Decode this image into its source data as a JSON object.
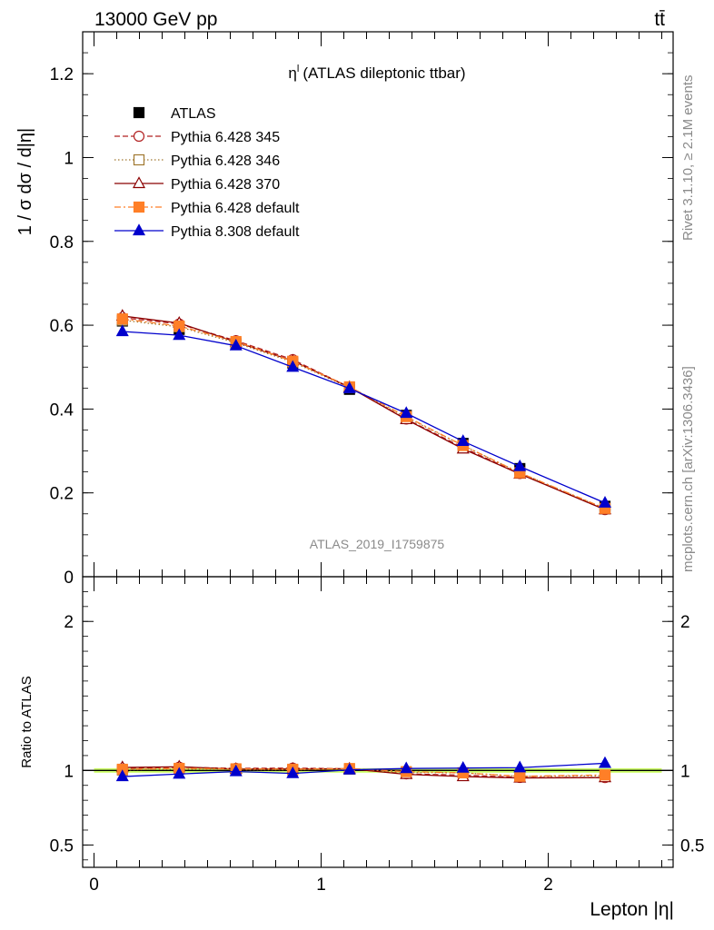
{
  "header": {
    "energy_label": "13000 GeV pp",
    "process_label": "tt̄"
  },
  "side_labels": {
    "rivet": "Rivet 3.1.10, ≥ 2.1M events",
    "mcplots": "mcplots.cern.ch [arXiv:1306.3436]"
  },
  "analysis_id": "ATLAS_2019_I1759875",
  "chart_data": [
    {
      "type": "line",
      "title": "η",
      "title_sup": "l",
      "subtitle": "(ATLAS dileptonic ttbar)",
      "ylabel": "1 / σ  dσ / d|η|",
      "xlabel": "Lepton |η|",
      "xlim": [
        -0.05,
        2.55
      ],
      "ylim": [
        0,
        1.3
      ],
      "y_ticks": [
        0,
        0.2,
        0.4,
        0.6,
        0.8,
        1,
        1.2
      ],
      "y_tick_labels": [
        "0",
        "0.2",
        "0.4",
        "0.6",
        "0.8",
        "1",
        "1.2"
      ],
      "x": [
        0.125,
        0.375,
        0.625,
        0.875,
        1.125,
        1.375,
        1.625,
        1.875,
        2.25
      ],
      "legend_placement": "top-left",
      "series": [
        {
          "name": "ATLAS",
          "color": "#000000",
          "marker": "square-filled",
          "line": "none",
          "values": [
            0.61,
            0.59,
            0.555,
            0.51,
            0.447,
            0.385,
            0.318,
            0.258,
            0.168
          ]
        },
        {
          "name": "Pythia 6.428 345",
          "color": "#b22222",
          "marker": "circle-open",
          "line": "dashed",
          "values": [
            0.618,
            0.603,
            0.563,
            0.518,
            0.452,
            0.376,
            0.308,
            0.246,
            0.16
          ]
        },
        {
          "name": "Pythia 6.428 346",
          "color": "#a07830",
          "marker": "square-open",
          "line": "dotted",
          "values": [
            0.612,
            0.596,
            0.558,
            0.512,
            0.451,
            0.38,
            0.313,
            0.248,
            0.162
          ]
        },
        {
          "name": "Pythia 6.428 370",
          "color": "#8b0000",
          "marker": "triangle-open",
          "line": "solid",
          "values": [
            0.622,
            0.605,
            0.56,
            0.515,
            0.452,
            0.375,
            0.305,
            0.245,
            0.16
          ]
        },
        {
          "name": "Pythia 6.428 default",
          "color": "#ff7f27",
          "marker": "square-filled",
          "line": "dashdot",
          "values": [
            0.615,
            0.598,
            0.561,
            0.514,
            0.453,
            0.382,
            0.313,
            0.248,
            0.163
          ]
        },
        {
          "name": "Pythia 8.308 default",
          "color": "#0000cc",
          "marker": "triangle-filled",
          "line": "solid",
          "values": [
            0.585,
            0.576,
            0.551,
            0.5,
            0.449,
            0.39,
            0.323,
            0.263,
            0.176
          ]
        }
      ]
    },
    {
      "type": "line",
      "ylabel": "Ratio to ATLAS",
      "xlabel": "Lepton |η|",
      "xlim": [
        -0.05,
        2.55
      ],
      "ylim": [
        0.35,
        2.3
      ],
      "y_ticks": [
        0.5,
        1,
        2
      ],
      "y_tick_labels": [
        "0.5",
        "1",
        "2"
      ],
      "x_ticks": [
        0,
        1,
        2
      ],
      "x_tick_labels": [
        "0",
        "1",
        "2"
      ],
      "x": [
        0.125,
        0.375,
        0.625,
        0.875,
        1.125,
        1.375,
        1.625,
        1.875,
        2.25
      ],
      "band": {
        "color": "#ccff66",
        "half_width": 0.015
      },
      "series": [
        {
          "name": "Pythia 6.428 345",
          "color": "#b22222",
          "marker": "circle-open",
          "line": "dashed",
          "values": [
            1.013,
            1.022,
            1.014,
            1.016,
            1.011,
            0.977,
            0.969,
            0.953,
            0.952
          ]
        },
        {
          "name": "Pythia 6.428 346",
          "color": "#a07830",
          "marker": "square-open",
          "line": "dotted",
          "values": [
            1.003,
            1.01,
            1.005,
            1.004,
            1.009,
            0.987,
            0.984,
            0.961,
            0.964
          ]
        },
        {
          "name": "Pythia 6.428 370",
          "color": "#8b0000",
          "marker": "triangle-open",
          "line": "solid",
          "values": [
            1.02,
            1.025,
            1.009,
            1.01,
            1.011,
            0.974,
            0.959,
            0.95,
            0.952
          ]
        },
        {
          "name": "Pythia 6.428 default",
          "color": "#ff7f27",
          "marker": "square-filled",
          "line": "dashdot",
          "values": [
            1.008,
            1.014,
            1.011,
            1.008,
            1.013,
            0.992,
            0.984,
            0.961,
            0.97
          ]
        },
        {
          "name": "Pythia 8.308 default",
          "color": "#0000cc",
          "marker": "triangle-filled",
          "line": "solid",
          "values": [
            0.959,
            0.976,
            0.993,
            0.98,
            1.004,
            1.013,
            1.016,
            1.019,
            1.048
          ]
        }
      ]
    }
  ]
}
